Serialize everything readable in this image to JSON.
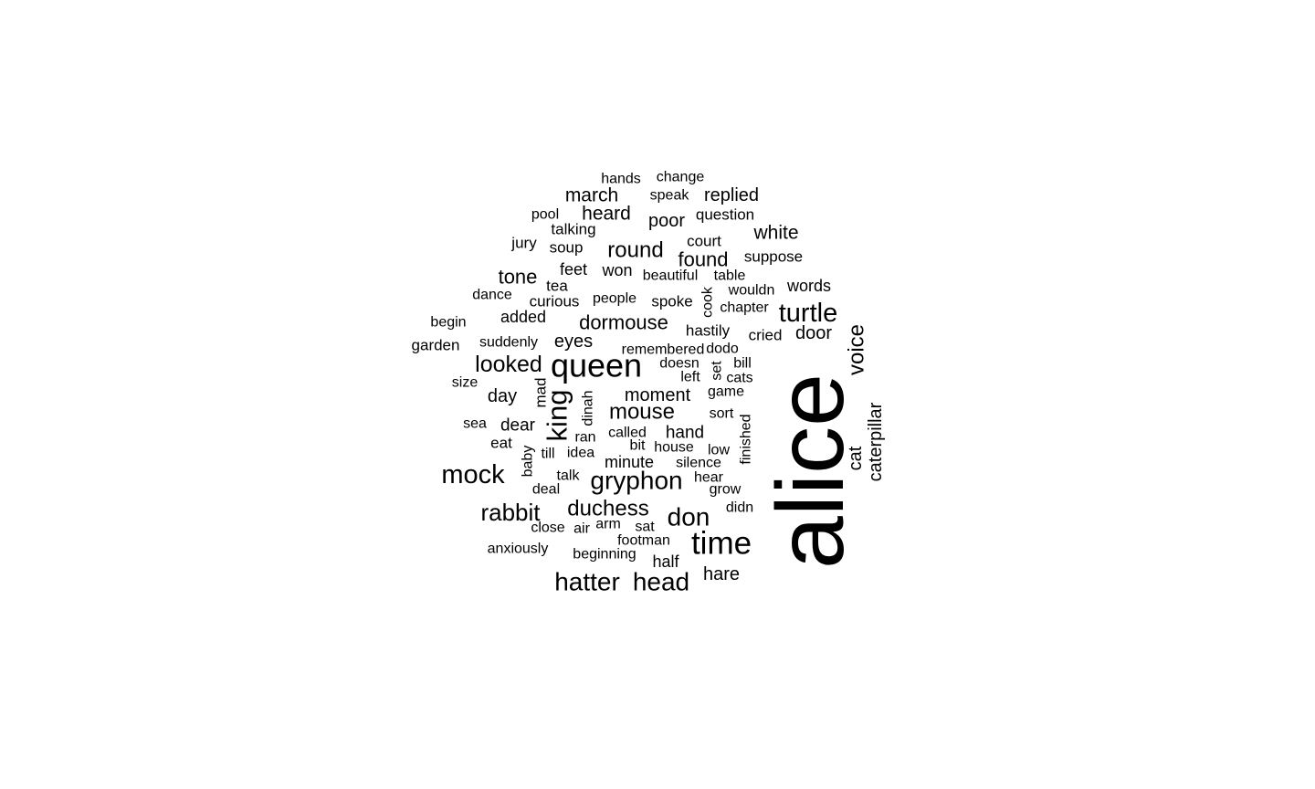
{
  "chart_data": {
    "type": "wordcloud",
    "words": [
      {
        "text": "alice",
        "rotated": true
      },
      {
        "text": "queen",
        "rotated": false
      },
      {
        "text": "time",
        "rotated": false
      },
      {
        "text": "turtle",
        "rotated": false
      },
      {
        "text": "mock",
        "rotated": false
      },
      {
        "text": "gryphon",
        "rotated": false
      },
      {
        "text": "hatter",
        "rotated": false
      },
      {
        "text": "head",
        "rotated": false
      },
      {
        "text": "don",
        "rotated": false
      },
      {
        "text": "king",
        "rotated": true
      },
      {
        "text": "voice",
        "rotated": true
      },
      {
        "text": "rabbit",
        "rotated": false
      },
      {
        "text": "looked",
        "rotated": false
      },
      {
        "text": "duchess",
        "rotated": false
      },
      {
        "text": "mouse",
        "rotated": false
      },
      {
        "text": "round",
        "rotated": false
      },
      {
        "text": "dormouse",
        "rotated": false
      },
      {
        "text": "found",
        "rotated": false
      },
      {
        "text": "tone",
        "rotated": false
      },
      {
        "text": "moment",
        "rotated": false
      },
      {
        "text": "march",
        "rotated": false
      },
      {
        "text": "heard",
        "rotated": false
      },
      {
        "text": "replied",
        "rotated": false
      },
      {
        "text": "white",
        "rotated": false
      },
      {
        "text": "door",
        "rotated": false
      },
      {
        "text": "hare",
        "rotated": false
      },
      {
        "text": "day",
        "rotated": false
      },
      {
        "text": "eyes",
        "rotated": false
      },
      {
        "text": "poor",
        "rotated": false
      },
      {
        "text": "dear",
        "rotated": false
      },
      {
        "text": "hand",
        "rotated": false
      },
      {
        "text": "minute",
        "rotated": false
      },
      {
        "text": "half",
        "rotated": false
      },
      {
        "text": "cat",
        "rotated": true
      },
      {
        "text": "caterpillar",
        "rotated": true
      },
      {
        "text": "added",
        "rotated": false
      },
      {
        "text": "won",
        "rotated": false
      },
      {
        "text": "feet",
        "rotated": false
      },
      {
        "text": "cried",
        "rotated": false
      },
      {
        "text": "words",
        "rotated": false
      },
      {
        "text": "question",
        "rotated": false
      },
      {
        "text": "talking",
        "rotated": false
      },
      {
        "text": "soup",
        "rotated": false
      },
      {
        "text": "jury",
        "rotated": false
      },
      {
        "text": "court",
        "rotated": false
      },
      {
        "text": "suppose",
        "rotated": false
      },
      {
        "text": "tea",
        "rotated": false
      },
      {
        "text": "curious",
        "rotated": false
      },
      {
        "text": "spoke",
        "rotated": false
      },
      {
        "text": "people",
        "rotated": false
      },
      {
        "text": "hastily",
        "rotated": false
      },
      {
        "text": "remembered",
        "rotated": false
      },
      {
        "text": "dodo",
        "rotated": false
      },
      {
        "text": "doesn",
        "rotated": false
      },
      {
        "text": "bill",
        "rotated": false
      },
      {
        "text": "left",
        "rotated": false
      },
      {
        "text": "cats",
        "rotated": false
      },
      {
        "text": "game",
        "rotated": false
      },
      {
        "text": "sort",
        "rotated": false
      },
      {
        "text": "called",
        "rotated": false
      },
      {
        "text": "ran",
        "rotated": false
      },
      {
        "text": "house",
        "rotated": false
      },
      {
        "text": "bit",
        "rotated": false
      },
      {
        "text": "low",
        "rotated": false
      },
      {
        "text": "silence",
        "rotated": false
      },
      {
        "text": "hear",
        "rotated": false
      },
      {
        "text": "idea",
        "rotated": false
      },
      {
        "text": "till",
        "rotated": false
      },
      {
        "text": "eat",
        "rotated": false
      },
      {
        "text": "sea",
        "rotated": false
      },
      {
        "text": "talk",
        "rotated": false
      },
      {
        "text": "deal",
        "rotated": false
      },
      {
        "text": "grow",
        "rotated": false
      },
      {
        "text": "didn",
        "rotated": false
      },
      {
        "text": "sat",
        "rotated": false
      },
      {
        "text": "arm",
        "rotated": false
      },
      {
        "text": "air",
        "rotated": false
      },
      {
        "text": "close",
        "rotated": false
      },
      {
        "text": "footman",
        "rotated": false
      },
      {
        "text": "beginning",
        "rotated": false
      },
      {
        "text": "anxiously",
        "rotated": false
      },
      {
        "text": "garden",
        "rotated": false
      },
      {
        "text": "suddenly",
        "rotated": false
      },
      {
        "text": "begin",
        "rotated": false
      },
      {
        "text": "dance",
        "rotated": false
      },
      {
        "text": "size",
        "rotated": false
      },
      {
        "text": "pool",
        "rotated": false
      },
      {
        "text": "hands",
        "rotated": false
      },
      {
        "text": "change",
        "rotated": false
      },
      {
        "text": "speak",
        "rotated": false
      },
      {
        "text": "beautiful",
        "rotated": false
      },
      {
        "text": "table",
        "rotated": false
      },
      {
        "text": "wouldn",
        "rotated": false
      },
      {
        "text": "chapter",
        "rotated": false
      },
      {
        "text": "cook",
        "rotated": true
      },
      {
        "text": "set",
        "rotated": true
      },
      {
        "text": "mad",
        "rotated": true
      },
      {
        "text": "dinah",
        "rotated": true
      },
      {
        "text": "baby",
        "rotated": true
      },
      {
        "text": "finished",
        "rotated": true
      }
    ]
  }
}
